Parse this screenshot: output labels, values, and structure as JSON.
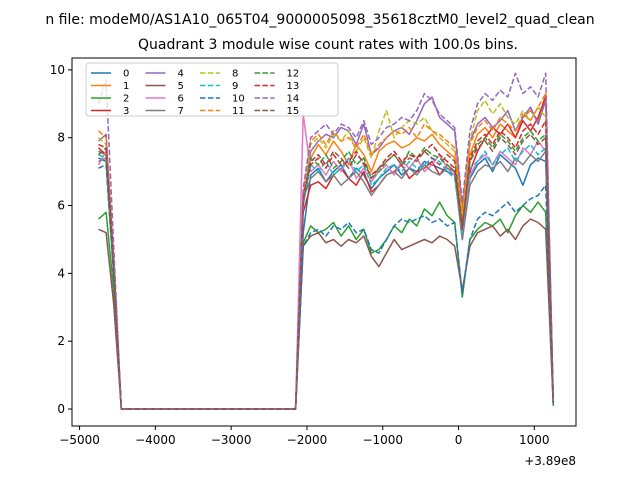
{
  "suptitle": "n file: modeM0/AS1A10_065T04_9000005098_35618cztM0_level2_quad_clean",
  "chart_data": {
    "type": "line",
    "title": "Quadrant 3 module wise count rates with 100.0s bins.",
    "xlabel": "",
    "ylabel": "",
    "x_offset_label": "+3.89e8",
    "xlim": [
      -5100,
      1550
    ],
    "ylim": [
      -0.5,
      10.35
    ],
    "xticks": [
      -5000,
      -4000,
      -3000,
      -2000,
      -1000,
      0,
      1000
    ],
    "xtick_labels": [
      "−5000",
      "−4000",
      "−3000",
      "−2000",
      "−1000",
      "0",
      "1000"
    ],
    "yticks": [
      0,
      2,
      4,
      6,
      8,
      10
    ],
    "ytick_labels": [
      "0",
      "2",
      "4",
      "6",
      "8",
      "10"
    ],
    "grid": false,
    "legend": {
      "placement": "top-left",
      "columns": 4
    },
    "x": [
      -4750,
      -4650,
      -4550,
      -4450,
      -4350,
      -4250,
      -4150,
      -4050,
      -3950,
      -3850,
      -3750,
      -3650,
      -3550,
      -3450,
      -3350,
      -3250,
      -3150,
      -3050,
      -2950,
      -2850,
      -2750,
      -2650,
      -2550,
      -2450,
      -2350,
      -2250,
      -2150,
      -2050,
      -1950,
      -1850,
      -1750,
      -1650,
      -1550,
      -1450,
      -1350,
      -1250,
      -1150,
      -1050,
      -950,
      -850,
      -750,
      -650,
      -550,
      -450,
      -350,
      -250,
      -150,
      -50,
      50,
      150,
      250,
      350,
      450,
      550,
      650,
      750,
      850,
      950,
      1050,
      1150,
      1250
    ],
    "series": [
      {
        "name": "0",
        "color": "#1f77b4",
        "dash": false,
        "values": [
          7.4,
          7.3,
          4.0,
          0,
          0,
          0,
          0,
          0,
          0,
          0,
          0,
          0,
          0,
          0,
          0,
          0,
          0,
          0,
          0,
          0,
          0,
          0,
          0,
          0,
          0,
          0,
          0,
          5.2,
          6.9,
          7.1,
          6.7,
          7.0,
          7.2,
          6.8,
          7.1,
          6.9,
          6.5,
          6.8,
          7.0,
          7.2,
          6.9,
          7.1,
          7.0,
          7.3,
          7.2,
          7.1,
          7.0,
          6.9,
          5.0,
          6.8,
          7.2,
          7.4,
          7.0,
          7.5,
          7.3,
          7.1,
          6.6,
          7.2,
          7.4,
          7.3,
          0.1
        ]
      },
      {
        "name": "1",
        "color": "#ff7f0e",
        "dash": false,
        "values": [
          7.6,
          7.5,
          4.1,
          0,
          0,
          0,
          0,
          0,
          0,
          0,
          0,
          0,
          0,
          0,
          0,
          0,
          0,
          0,
          0,
          0,
          0,
          0,
          0,
          0,
          0,
          0,
          0,
          6.0,
          7.4,
          7.8,
          7.5,
          7.9,
          7.6,
          7.2,
          7.8,
          7.5,
          7.0,
          7.6,
          7.8,
          7.9,
          7.7,
          7.8,
          8.0,
          7.9,
          8.1,
          7.8,
          7.6,
          7.4,
          5.6,
          7.5,
          8.1,
          8.3,
          8.0,
          8.4,
          8.2,
          8.0,
          8.6,
          8.8,
          8.5,
          9.3,
          0.2
        ]
      },
      {
        "name": "2",
        "color": "#2ca02c",
        "dash": false,
        "values": [
          5.6,
          5.8,
          3.5,
          0,
          0,
          0,
          0,
          0,
          0,
          0,
          0,
          0,
          0,
          0,
          0,
          0,
          0,
          0,
          0,
          0,
          0,
          0,
          0,
          0,
          0,
          0,
          0,
          4.9,
          5.4,
          5.2,
          5.3,
          5.5,
          5.1,
          5.4,
          5.0,
          5.3,
          4.6,
          4.7,
          5.0,
          5.4,
          5.2,
          5.6,
          5.4,
          5.9,
          5.7,
          6.1,
          5.7,
          5.5,
          3.3,
          5.0,
          5.3,
          5.5,
          5.4,
          5.6,
          5.2,
          5.7,
          6.0,
          5.8,
          6.1,
          5.8,
          0.1
        ]
      },
      {
        "name": "3",
        "color": "#d62728",
        "dash": false,
        "values": [
          7.7,
          7.5,
          4.2,
          0,
          0,
          0,
          0,
          0,
          0,
          0,
          0,
          0,
          0,
          0,
          0,
          0,
          0,
          0,
          0,
          0,
          0,
          0,
          0,
          0,
          0,
          0,
          0,
          5.8,
          6.6,
          6.7,
          6.5,
          6.9,
          7.1,
          6.8,
          6.6,
          7.0,
          6.4,
          6.6,
          6.9,
          7.0,
          7.2,
          6.8,
          7.0,
          7.1,
          7.3,
          6.9,
          7.2,
          7.0,
          5.2,
          7.0,
          7.6,
          8.0,
          8.3,
          8.1,
          8.4,
          8.0,
          8.5,
          8.2,
          8.6,
          9.2,
          0.2
        ]
      },
      {
        "name": "4",
        "color": "#9467bd",
        "dash": false,
        "values": [
          7.9,
          8.1,
          4.4,
          0,
          0,
          0,
          0,
          0,
          0,
          0,
          0,
          0,
          0,
          0,
          0,
          0,
          0,
          0,
          0,
          0,
          0,
          0,
          0,
          0,
          0,
          0,
          0,
          6.1,
          7.6,
          7.9,
          8.1,
          8.0,
          8.3,
          8.2,
          7.8,
          8.4,
          7.5,
          7.7,
          8.0,
          8.2,
          8.3,
          8.1,
          8.5,
          9.0,
          9.2,
          8.6,
          8.4,
          8.2,
          5.9,
          7.9,
          8.4,
          8.6,
          8.3,
          8.5,
          8.8,
          8.2,
          8.6,
          8.9,
          8.4,
          9.1,
          0.2
        ]
      },
      {
        "name": "5",
        "color": "#8c564b",
        "dash": false,
        "values": [
          5.3,
          5.2,
          3.1,
          0,
          0,
          0,
          0,
          0,
          0,
          0,
          0,
          0,
          0,
          0,
          0,
          0,
          0,
          0,
          0,
          0,
          0,
          0,
          0,
          0,
          0,
          0,
          0,
          4.8,
          5.1,
          5.2,
          4.9,
          5.0,
          4.8,
          5.0,
          4.9,
          5.1,
          4.5,
          4.2,
          4.6,
          5.0,
          4.7,
          4.8,
          4.9,
          5.0,
          4.9,
          5.1,
          5.0,
          4.8,
          3.5,
          4.8,
          5.2,
          5.3,
          5.4,
          5.1,
          5.3,
          5.0,
          5.4,
          5.6,
          5.5,
          5.3,
          0.1
        ]
      },
      {
        "name": "6",
        "color": "#e377c2",
        "dash": false,
        "values": [
          7.2,
          7.6,
          4.1,
          0,
          0,
          0,
          0,
          0,
          0,
          0,
          0,
          0,
          0,
          0,
          0,
          0,
          0,
          0,
          0,
          0,
          0,
          0,
          0,
          0,
          0,
          0,
          0,
          8.7,
          7.0,
          7.2,
          6.9,
          7.3,
          7.0,
          7.4,
          6.8,
          7.1,
          6.7,
          7.0,
          7.2,
          6.9,
          7.3,
          7.1,
          7.4,
          7.0,
          7.2,
          7.5,
          7.1,
          6.9,
          5.1,
          6.9,
          7.3,
          7.5,
          7.2,
          7.6,
          7.4,
          7.2,
          7.7,
          7.5,
          7.9,
          7.6,
          0.2
        ]
      },
      {
        "name": "7",
        "color": "#7f7f7f",
        "dash": false,
        "values": [
          7.3,
          7.4,
          4.0,
          0,
          0,
          0,
          0,
          0,
          0,
          0,
          0,
          0,
          0,
          0,
          0,
          0,
          0,
          0,
          0,
          0,
          0,
          0,
          0,
          0,
          0,
          0,
          0,
          6.2,
          6.8,
          7.0,
          6.7,
          6.9,
          6.6,
          6.8,
          7.0,
          6.7,
          6.3,
          6.6,
          6.9,
          7.0,
          6.8,
          7.1,
          6.9,
          7.2,
          7.0,
          6.9,
          7.1,
          7.0,
          5.0,
          6.6,
          7.0,
          7.2,
          7.1,
          7.3,
          7.0,
          7.4,
          7.2,
          7.5,
          7.3,
          7.6,
          0.1
        ]
      },
      {
        "name": "8",
        "color": "#bcbd22",
        "dash": true,
        "values": [
          8.0,
          7.8,
          4.3,
          0,
          0,
          0,
          0,
          0,
          0,
          0,
          0,
          0,
          0,
          0,
          0,
          0,
          0,
          0,
          0,
          0,
          0,
          0,
          0,
          0,
          0,
          0,
          0,
          6.3,
          7.8,
          8.0,
          7.7,
          8.1,
          7.9,
          8.2,
          7.6,
          8.0,
          7.4,
          8.2,
          8.8,
          8.0,
          8.3,
          8.5,
          8.4,
          8.6,
          8.2,
          8.0,
          7.8,
          7.6,
          5.7,
          7.9,
          8.8,
          9.1,
          8.7,
          9.0,
          8.6,
          8.4,
          8.8,
          8.5,
          8.9,
          8.6,
          0.2
        ]
      },
      {
        "name": "9",
        "color": "#17becf",
        "dash": true,
        "values": [
          7.5,
          7.4,
          4.1,
          0,
          0,
          0,
          0,
          0,
          0,
          0,
          0,
          0,
          0,
          0,
          0,
          0,
          0,
          0,
          0,
          0,
          0,
          0,
          0,
          0,
          0,
          0,
          0,
          6.0,
          7.2,
          7.0,
          7.3,
          6.9,
          7.1,
          7.4,
          7.0,
          7.2,
          6.6,
          6.8,
          7.1,
          7.2,
          7.0,
          7.3,
          7.1,
          7.2,
          7.4,
          7.3,
          7.0,
          6.8,
          5.2,
          7.1,
          7.3,
          7.6,
          7.2,
          7.5,
          7.7,
          7.3,
          7.6,
          7.8,
          7.5,
          7.7,
          0.1
        ]
      },
      {
        "name": "10",
        "color": "#1f77b4",
        "dash": true,
        "values": [
          7.1,
          7.2,
          3.9,
          0,
          0,
          0,
          0,
          0,
          0,
          0,
          0,
          0,
          0,
          0,
          0,
          0,
          0,
          0,
          0,
          0,
          0,
          0,
          0,
          0,
          0,
          0,
          0,
          4.8,
          5.2,
          5.3,
          5.1,
          5.4,
          5.3,
          5.5,
          5.2,
          5.3,
          4.7,
          4.6,
          5.0,
          5.4,
          5.6,
          5.5,
          5.6,
          5.7,
          5.5,
          5.6,
          5.4,
          5.5,
          3.4,
          5.0,
          5.6,
          5.8,
          5.7,
          5.9,
          6.1,
          5.8,
          6.0,
          6.2,
          6.3,
          6.6,
          0.1
        ]
      },
      {
        "name": "11",
        "color": "#ff7f0e",
        "dash": true,
        "values": [
          8.2,
          8.0,
          4.4,
          0,
          0,
          0,
          0,
          0,
          0,
          0,
          0,
          0,
          0,
          0,
          0,
          0,
          0,
          0,
          0,
          0,
          0,
          0,
          0,
          0,
          0,
          0,
          0,
          6.4,
          7.9,
          8.1,
          7.8,
          8.2,
          7.9,
          8.0,
          7.7,
          8.1,
          7.5,
          7.8,
          8.0,
          8.2,
          8.1,
          8.3,
          8.0,
          8.4,
          8.2,
          8.1,
          7.9,
          7.7,
          5.8,
          7.8,
          8.3,
          8.5,
          8.2,
          8.6,
          8.4,
          8.2,
          8.7,
          8.5,
          8.9,
          9.3,
          0.2
        ]
      },
      {
        "name": "12",
        "color": "#2ca02c",
        "dash": true,
        "values": [
          7.6,
          7.5,
          4.2,
          0,
          0,
          0,
          0,
          0,
          0,
          0,
          0,
          0,
          0,
          0,
          0,
          0,
          0,
          0,
          0,
          0,
          0,
          0,
          0,
          0,
          0,
          0,
          0,
          6.2,
          7.4,
          7.2,
          7.5,
          7.1,
          7.3,
          7.6,
          7.2,
          7.4,
          6.8,
          7.0,
          7.3,
          7.5,
          7.2,
          7.6,
          7.4,
          7.7,
          7.5,
          7.4,
          7.2,
          7.0,
          5.4,
          7.3,
          7.8,
          8.0,
          7.7,
          8.1,
          7.9,
          7.6,
          8.0,
          8.2,
          7.9,
          8.1,
          0.1
        ]
      },
      {
        "name": "13",
        "color": "#d62728",
        "dash": true,
        "values": [
          7.8,
          7.7,
          4.3,
          0,
          0,
          0,
          0,
          0,
          0,
          0,
          0,
          0,
          0,
          0,
          0,
          0,
          0,
          0,
          0,
          0,
          0,
          0,
          0,
          0,
          0,
          0,
          0,
          6.3,
          7.2,
          7.4,
          7.1,
          7.5,
          7.2,
          7.3,
          7.6,
          7.2,
          6.9,
          7.1,
          7.4,
          7.6,
          7.3,
          7.5,
          7.4,
          7.6,
          7.8,
          7.5,
          7.3,
          7.1,
          5.3,
          7.4,
          7.9,
          8.1,
          7.8,
          8.2,
          8.0,
          7.7,
          8.2,
          8.4,
          8.1,
          8.5,
          0.2
        ]
      },
      {
        "name": "14",
        "color": "#9467bd",
        "dash": true,
        "values": [
          9.0,
          9.7,
          4.8,
          0,
          0,
          0,
          0,
          0,
          0,
          0,
          0,
          0,
          0,
          0,
          0,
          0,
          0,
          0,
          0,
          0,
          0,
          0,
          0,
          0,
          0,
          0,
          0,
          6.5,
          8.0,
          8.2,
          8.4,
          8.1,
          8.4,
          8.3,
          8.0,
          8.5,
          7.8,
          8.0,
          8.3,
          8.4,
          8.6,
          8.5,
          8.8,
          9.3,
          9.1,
          8.7,
          8.5,
          8.3,
          6.1,
          8.2,
          9.0,
          9.3,
          9.1,
          9.4,
          9.2,
          9.9,
          9.3,
          9.5,
          9.2,
          9.9,
          0.2
        ]
      },
      {
        "name": "15",
        "color": "#8c564b",
        "dash": true,
        "values": [
          7.5,
          7.7,
          4.2,
          0,
          0,
          0,
          0,
          0,
          0,
          0,
          0,
          0,
          0,
          0,
          0,
          0,
          0,
          0,
          0,
          0,
          0,
          0,
          0,
          0,
          0,
          0,
          0,
          6.1,
          7.3,
          7.5,
          7.2,
          7.6,
          7.4,
          7.1,
          7.5,
          7.3,
          6.8,
          7.1,
          7.3,
          7.5,
          7.2,
          7.4,
          7.3,
          7.6,
          7.4,
          7.2,
          7.5,
          7.3,
          5.4,
          7.3,
          7.7,
          7.9,
          7.6,
          8.0,
          7.8,
          7.5,
          7.9,
          8.1,
          7.8,
          8.0,
          0.2
        ]
      }
    ]
  }
}
